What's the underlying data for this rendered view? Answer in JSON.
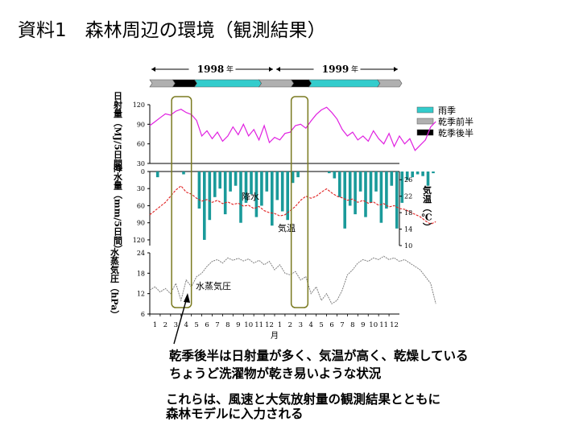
{
  "page": {
    "title": "資料1　森林周辺の環境（観測結果）",
    "caption_lines": [
      "乾季後半は日射量が多く、気温が高く、乾燥している",
      "ちょうど洗濯物が乾き易いような状況"
    ],
    "note_lines": [
      "これらは、風速と大気放射量の観測結果とともに",
      "森林モデルに入力される"
    ]
  },
  "chart_data": {
    "type": "line",
    "years": [
      {
        "label": "1998",
        "unit": "年",
        "months": 12
      },
      {
        "label": "1999",
        "unit": "年",
        "months": 12
      }
    ],
    "xlabel": "月",
    "x_ticks": [
      "1",
      "2",
      "3",
      "4",
      "5",
      "6",
      "7",
      "8",
      "9",
      "10",
      "11",
      "12",
      "1",
      "2",
      "3",
      "4",
      "5",
      "6",
      "7",
      "8",
      "9",
      "10",
      "11",
      "12"
    ],
    "season_bar": [
      {
        "season": "dry_early",
        "start_month": 0.0,
        "end_month": 2.2
      },
      {
        "season": "dry_late",
        "start_month": 2.2,
        "end_month": 4.3
      },
      {
        "season": "rainy",
        "start_month": 4.3,
        "end_month": 10.5
      },
      {
        "season": "dry_early",
        "start_month": 10.5,
        "end_month": 13.6
      },
      {
        "season": "dry_late",
        "start_month": 13.6,
        "end_month": 15.3
      },
      {
        "season": "rainy",
        "start_month": 15.3,
        "end_month": 21.9
      },
      {
        "season": "dry_early",
        "start_month": 21.9,
        "end_month": 24.0
      }
    ],
    "legend": {
      "position": "right",
      "items": [
        {
          "label": "雨季",
          "color": "#33cccc"
        },
        {
          "label": "乾季前半",
          "color": "#b0b0b0"
        },
        {
          "label": "乾季後半",
          "color": "#000000"
        }
      ]
    },
    "highlights": [
      {
        "start_month": 2.1,
        "end_month": 4.0
      },
      {
        "start_month": 13.6,
        "end_month": 15.2
      }
    ],
    "panels": [
      {
        "id": "solar",
        "ylabel": "日射量（MJ/5日間）",
        "ylim": [
          30,
          120
        ],
        "yticks": [
          30,
          60,
          90,
          120
        ],
        "color": "#e020e0",
        "series": [
          {
            "name": "日射量",
            "x_month_start": 0.0,
            "step_months": 0.5,
            "values": [
              88,
              94,
              100,
              106,
              104,
              110,
              113,
              108,
              105,
              96,
              72,
              80,
              68,
              78,
              64,
              72,
              86,
              74,
              90,
              72,
              82,
              66,
              88,
              62,
              70,
              66,
              76,
              78,
              88,
              90,
              84,
              95,
              105,
              112,
              116,
              108,
              98,
              82,
              72,
              78,
              66,
              72,
              64,
              80,
              68,
              60,
              76,
              56,
              72,
              60,
              68,
              50,
              58,
              66,
              86,
              94
            ]
          }
        ],
        "labels": []
      },
      {
        "id": "rain_temp",
        "ylabel": "降水量（mm/5日間）",
        "ylim": [
          0,
          130
        ],
        "yticks": [
          0,
          30,
          60,
          90,
          120
        ],
        "ylabel_right": "気温（℃）",
        "ylim_right": [
          10,
          28
        ],
        "yticks_right": [
          10,
          14,
          18,
          22,
          26
        ],
        "labels": [
          "降水",
          "気温"
        ],
        "bars": {
          "name": "降水",
          "color": "#1a9a9a",
          "x_month_start": 0.0,
          "step_months": 0.5,
          "values": [
            0,
            10,
            0,
            0,
            0,
            0,
            5,
            0,
            0,
            65,
            120,
            85,
            45,
            30,
            75,
            35,
            25,
            90,
            55,
            40,
            80,
            60,
            35,
            95,
            50,
            70,
            85,
            20,
            10,
            0,
            0,
            0,
            0,
            0,
            3,
            12,
            45,
            100,
            60,
            75,
            35,
            80,
            55,
            35,
            90,
            65,
            25,
            100,
            55,
            15,
            10,
            5,
            8,
            25,
            3,
            0
          ]
        },
        "temp_line": {
          "name": "気温",
          "color": "#e02020",
          "x_month_start": 0.0,
          "step_months": 0.5,
          "values": [
            17.5,
            18.5,
            19.5,
            20.5,
            22,
            23.5,
            24.5,
            23,
            22.5,
            21.5,
            20.8,
            21.2,
            20.5,
            21,
            20.2,
            20.6,
            20,
            20.3,
            19.6,
            19.8,
            19,
            19.5,
            18.5,
            18,
            17.8,
            17.2,
            17.5,
            18.5,
            19.5,
            21,
            22,
            21.5,
            22,
            23,
            23.8,
            22.8,
            22,
            21.6,
            21,
            21.3,
            20.5,
            21,
            20.3,
            20.6,
            19.8,
            20.2,
            19.4,
            19.7,
            19,
            18.8,
            18.2,
            17.6,
            17,
            16,
            15.2,
            15.8
          ]
        }
      },
      {
        "id": "vapor",
        "ylabel": "水蒸気圧（hPa）",
        "ylim": [
          6,
          24
        ],
        "yticks": [
          6,
          12,
          18,
          24
        ],
        "labels": [
          "水蒸気圧"
        ],
        "series": [
          {
            "name": "水蒸気圧",
            "color": "#808080",
            "x_month_start": 0.0,
            "step_months": 0.5,
            "values": [
              13,
              14,
              12.5,
              13.5,
              12,
              15,
              10,
              16,
              14,
              17,
              18,
              20,
              21.5,
              22,
              21,
              22.5,
              21.8,
              22.4,
              21.6,
              22.2,
              21,
              21.8,
              20.5,
              21.5,
              19,
              20.5,
              18,
              17.5,
              18.5,
              16,
              17,
              12,
              14,
              10,
              12,
              9,
              10,
              13,
              17.5,
              19,
              21,
              22,
              21.5,
              22.5,
              22,
              23,
              22,
              22.5,
              21.5,
              22,
              21,
              20,
              19,
              17,
              15,
              9
            ]
          }
        ]
      }
    ]
  }
}
